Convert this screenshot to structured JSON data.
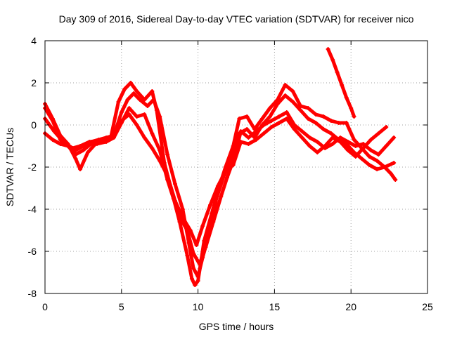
{
  "chart_data": {
    "type": "scatter",
    "title": "Day 309 of 2016, Sidereal Day-to-day VTEC variation (SDTVAR) for receiver nico",
    "xlabel": "GPS time / hours",
    "ylabel": "SDTVAR / TECUs",
    "xlim": [
      0,
      25
    ],
    "ylim": [
      -8,
      4
    ],
    "xticks": [
      0,
      5,
      10,
      15,
      20,
      25
    ],
    "yticks": [
      -8,
      -6,
      -4,
      -2,
      0,
      2,
      4
    ],
    "xtick_labels": [
      "0",
      "5",
      "10",
      "15",
      "20",
      "25"
    ],
    "ytick_labels": [
      "-8",
      "-6",
      "-4",
      "-2",
      "0",
      "2",
      "4"
    ],
    "grid": true,
    "marker": "plus",
    "color": "#ff0000",
    "series": [
      {
        "x": [
          0.0,
          0.5,
          1.0,
          1.5,
          2.0,
          2.3,
          2.8,
          3.3,
          3.8,
          4.3,
          4.8,
          5.2,
          5.6,
          6.0,
          6.5,
          7.0,
          7.3,
          7.8,
          8.3,
          8.8,
          9.3,
          9.6,
          9.8,
          10.0,
          10.4,
          10.9,
          11.4,
          11.8,
          12.3,
          12.7,
          13.2,
          13.7,
          14.2,
          14.7,
          15.2,
          15.7,
          16.2,
          16.7,
          17.2,
          17.7,
          18.2,
          18.7,
          19.2,
          19.7,
          20.2,
          20.7,
          21.2,
          21.7,
          22.2,
          22.6,
          22.9
        ],
        "y": [
          1.0,
          0.3,
          -0.5,
          -0.9,
          -1.6,
          -2.1,
          -1.3,
          -0.9,
          -0.7,
          -0.6,
          1.1,
          1.7,
          2.0,
          1.6,
          1.2,
          1.6,
          0.7,
          -1.8,
          -3.2,
          -4.6,
          -6.2,
          -7.3,
          -7.6,
          -7.4,
          -5.5,
          -4.2,
          -2.9,
          -2.0,
          -1.0,
          0.3,
          0.4,
          -0.2,
          0.3,
          0.8,
          1.2,
          1.9,
          1.6,
          0.9,
          0.8,
          0.5,
          0.4,
          0.2,
          0.1,
          0.1,
          -0.7,
          -1.1,
          -1.5,
          -1.7,
          -2.0,
          -2.3,
          -2.6
        ]
      },
      {
        "x": [
          0.0,
          0.5,
          1.0,
          1.5,
          2.0,
          2.5,
          3.0,
          3.5,
          4.0,
          4.5,
          5.0,
          5.4,
          5.8,
          6.2,
          6.7,
          7.1,
          7.5,
          8.0,
          8.5,
          9.0,
          9.4,
          9.7,
          10.0,
          10.3,
          10.8,
          11.2,
          11.7,
          12.2,
          12.7,
          13.2,
          13.7,
          14.2,
          14.7,
          15.2,
          15.7,
          16.2,
          16.7,
          17.2,
          17.7,
          18.2,
          18.7,
          19.2,
          19.7,
          20.2,
          20.7,
          21.2,
          21.7,
          22.2,
          22.8
        ],
        "y": [
          0.8,
          0.2,
          -0.7,
          -1.0,
          -1.4,
          -1.2,
          -0.9,
          -0.8,
          -0.7,
          -0.5,
          0.6,
          1.2,
          1.5,
          1.2,
          0.9,
          1.2,
          0.4,
          -1.4,
          -2.8,
          -4.0,
          -5.6,
          -6.8,
          -7.2,
          -6.3,
          -5.0,
          -3.5,
          -2.4,
          -1.6,
          -0.4,
          -0.2,
          -0.6,
          0.0,
          0.4,
          1.0,
          1.4,
          1.1,
          0.7,
          0.3,
          0.1,
          -0.2,
          -0.4,
          -0.7,
          -0.9,
          -1.3,
          -1.6,
          -1.9,
          -2.1,
          -2.0,
          -1.8
        ]
      },
      {
        "x": [
          0.0,
          0.6,
          1.2,
          1.8,
          2.3,
          2.9,
          3.4,
          4.0,
          4.5,
          5.0,
          5.5,
          6.0,
          6.5,
          7.0,
          7.5,
          8.0,
          8.4,
          8.9,
          9.3,
          9.7,
          10.1,
          10.5,
          11.0,
          11.5,
          11.9,
          12.4,
          12.8,
          13.3,
          13.8,
          14.3,
          14.8,
          15.3,
          15.8,
          16.3,
          16.8,
          17.3,
          17.8,
          18.3,
          18.8,
          19.3,
          19.8,
          20.3,
          20.8,
          21.3,
          21.8,
          22.3,
          22.8
        ],
        "y": [
          0.3,
          -0.3,
          -0.8,
          -1.1,
          -1.0,
          -0.8,
          -0.9,
          -0.8,
          -0.6,
          0.1,
          0.8,
          0.4,
          0.5,
          -0.4,
          -1.2,
          -2.6,
          -3.5,
          -4.5,
          -5.0,
          -6.1,
          -6.6,
          -5.8,
          -4.6,
          -3.4,
          -2.5,
          -1.5,
          -0.3,
          -0.6,
          -0.3,
          0.0,
          0.2,
          0.4,
          0.6,
          0.0,
          -0.3,
          -0.6,
          -0.8,
          -1.1,
          -0.9,
          -0.6,
          -0.8,
          -1.0,
          -0.9,
          -1.2,
          -1.4,
          -1.0,
          -0.6
        ]
      },
      {
        "x": [
          0.0,
          0.5,
          1.0,
          1.5,
          2.0,
          2.5,
          3.0,
          3.5,
          4.0,
          4.5,
          5.0,
          5.5,
          6.0,
          6.5,
          7.0,
          7.5,
          8.0,
          8.5,
          9.0,
          9.5,
          9.9,
          10.3,
          10.8,
          11.3,
          11.8,
          12.3,
          12.8,
          13.3,
          13.8,
          14.3,
          14.8,
          15.3,
          15.8,
          16.3,
          16.8,
          17.3,
          17.8,
          18.3,
          18.8,
          19.3,
          19.8,
          20.3,
          20.8,
          21.3,
          21.8,
          22.3
        ],
        "y": [
          -0.4,
          -0.7,
          -0.9,
          -1.0,
          -1.2,
          -1.0,
          -0.8,
          -0.7,
          -0.6,
          -0.5,
          0.2,
          0.5,
          0.0,
          -0.6,
          -1.1,
          -1.7,
          -2.4,
          -3.6,
          -4.4,
          -5.0,
          -5.7,
          -4.8,
          -3.8,
          -2.9,
          -2.2,
          -1.9,
          -0.8,
          -0.9,
          -0.7,
          -0.4,
          -0.1,
          0.1,
          0.3,
          -0.2,
          -0.6,
          -1.0,
          -1.3,
          -1.0,
          -0.6,
          -0.8,
          -1.2,
          -1.5,
          -1.1,
          -0.7,
          -0.4,
          -0.1
        ]
      },
      {
        "x": [
          18.5,
          18.8,
          19.1,
          19.4,
          19.7,
          20.0,
          20.2
        ],
        "y": [
          3.6,
          3.1,
          2.5,
          1.9,
          1.3,
          0.8,
          0.4
        ]
      }
    ]
  }
}
